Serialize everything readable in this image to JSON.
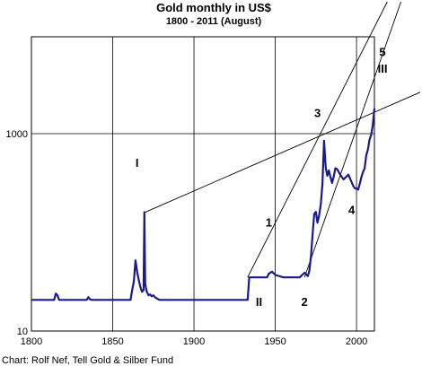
{
  "chart_data": {
    "type": "line",
    "title": "Gold monthly in US$",
    "subtitle": "1800 - 2011 (August)",
    "credit": "Chart: Rolf Nef, Tell Gold & Silber Fund",
    "xlim": [
      1800,
      2011
    ],
    "ylim": [
      10,
      10000
    ],
    "y_scale": "log",
    "x_ticks": [
      {
        "value": 1800,
        "label": "1800"
      },
      {
        "value": 1850,
        "label": "1850"
      },
      {
        "value": 1900,
        "label": "1900"
      },
      {
        "value": 1950,
        "label": "1950"
      },
      {
        "value": 2000,
        "label": "2000"
      }
    ],
    "y_ticks": [
      {
        "value": 10,
        "label": "10"
      },
      {
        "value": 1000,
        "label": "1000"
      }
    ],
    "grid": true,
    "line_color": "#1a1a8c",
    "series": [
      {
        "x": [
          1800,
          1814,
          1815,
          1816,
          1817,
          1818,
          1834,
          1835,
          1836,
          1837,
          1838,
          1861,
          1862,
          1863,
          1864,
          1865,
          1866,
          1867,
          1868,
          1869,
          1869.5,
          1870,
          1871,
          1872,
          1873,
          1874,
          1875,
          1876,
          1877,
          1878,
          1879,
          1880,
          1900,
          1933,
          1934,
          1940,
          1945,
          1946,
          1948,
          1950,
          1955,
          1960,
          1965,
          1968,
          1970,
          1971,
          1972,
          1973,
          1974,
          1975,
          1976,
          1977,
          1978,
          1979,
          1980,
          1981,
          1982,
          1983,
          1984,
          1985,
          1986,
          1987,
          1988,
          1990,
          1992,
          1995,
          1998,
          1999,
          2000,
          2001,
          2002,
          2003,
          2004,
          2005,
          2006,
          2007,
          2008,
          2009,
          2010,
          2011
        ],
        "y": [
          20.67,
          20.67,
          24,
          23,
          20.67,
          20.67,
          20.67,
          22,
          21,
          20.67,
          20.67,
          20.67,
          26,
          32,
          52,
          40,
          33,
          28,
          25,
          26,
          160,
          30,
          25,
          23,
          23.5,
          22.5,
          23,
          22,
          21.5,
          21,
          20.67,
          20.67,
          20.67,
          20.67,
          35,
          35,
          35,
          38,
          40,
          37,
          35,
          35,
          35,
          39,
          36,
          41,
          58,
          97,
          154,
          161,
          125,
          148,
          193,
          307,
          850,
          460,
          375,
          424,
          361,
          317,
          368,
          447,
          437,
          383,
          344,
          384,
          294,
          279,
          279,
          271,
          310,
          363,
          409,
          445,
          604,
          695,
          872,
          972,
          1224,
          1800
        ]
      }
    ],
    "trend_lines": [
      {
        "x": [
          1870,
          2011
        ],
        "y": [
          160,
          1650
        ]
      },
      {
        "x": [
          1933,
          2011
        ],
        "y": [
          35,
          12000
        ]
      },
      {
        "x": [
          1968,
          2011
        ],
        "y": [
          35,
          3700
        ]
      }
    ],
    "annotations": [
      {
        "label": "I",
        "x": 1865,
        "y": 460
      },
      {
        "label": "1",
        "x": 1946,
        "y": 115
      },
      {
        "label": "II",
        "x": 1940,
        "y": 18
      },
      {
        "label": "2",
        "x": 1968,
        "y": 18
      },
      {
        "label": "3",
        "x": 1976,
        "y": 1480
      },
      {
        "label": "4",
        "x": 1997,
        "y": 153
      },
      {
        "label": "5",
        "x": 2016,
        "y": 6100
      },
      {
        "label": "III",
        "x": 2016,
        "y": 4150
      }
    ]
  }
}
